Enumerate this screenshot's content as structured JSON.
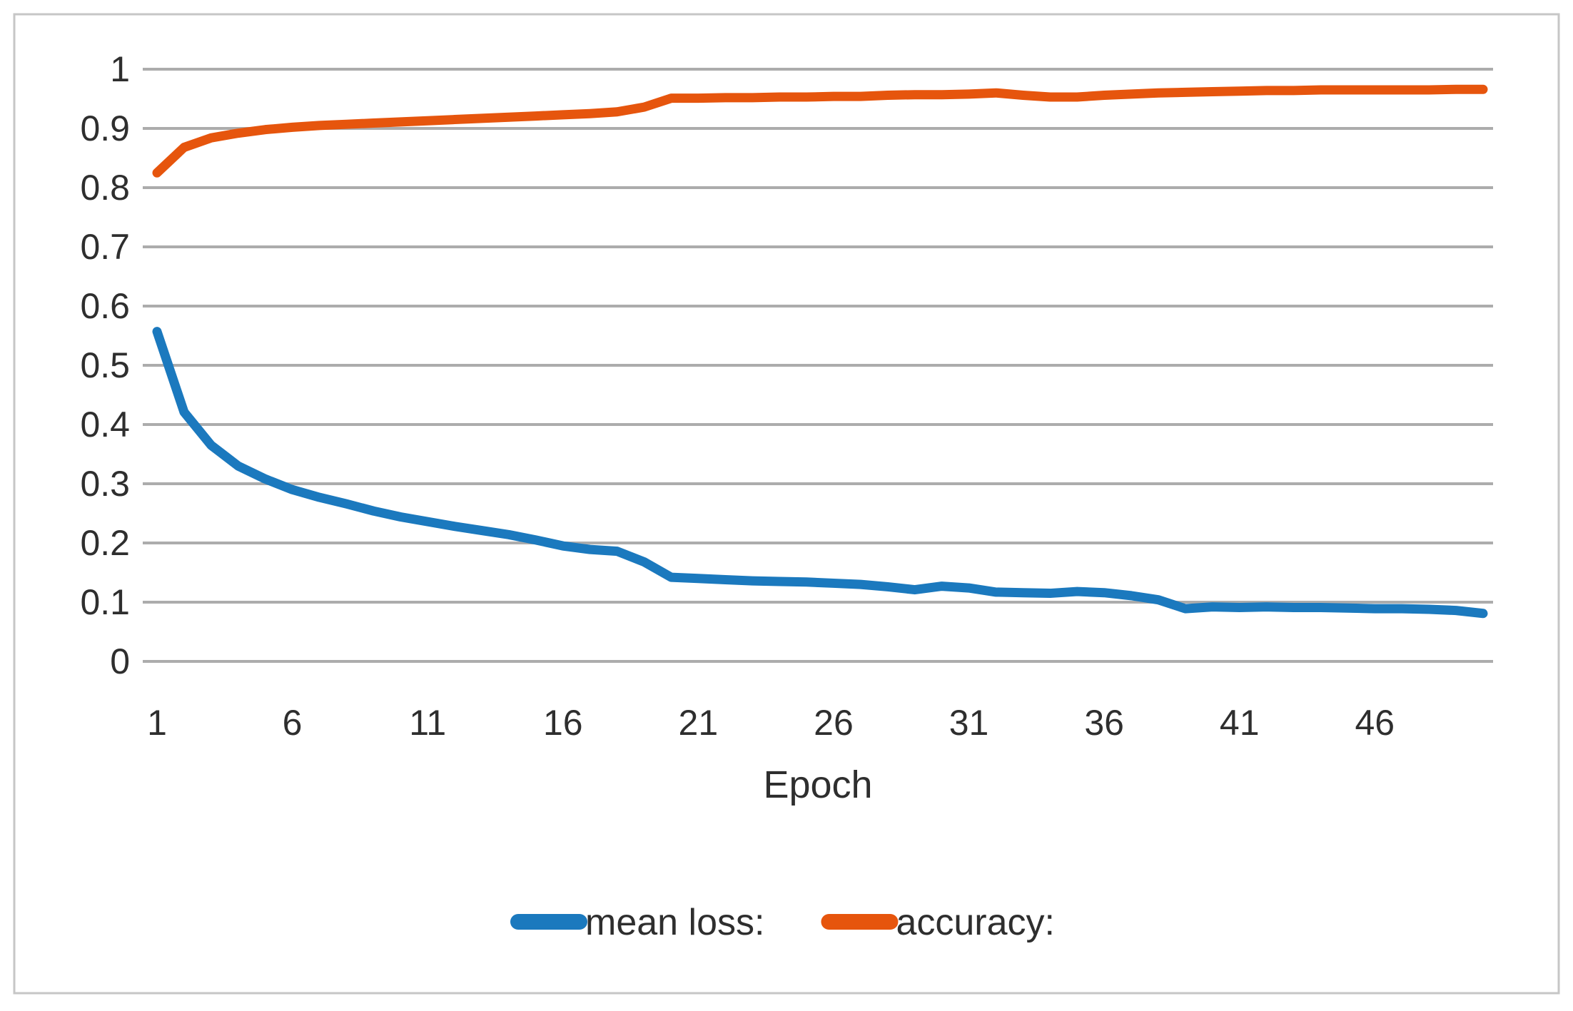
{
  "figure": {
    "background": "#ffffff",
    "border_color": "#c6c6c6",
    "gridline_color": "#acacac",
    "text_color": "#2e2e2e",
    "line_width": 13,
    "gridline_width": 4
  },
  "chart_data": {
    "type": "line",
    "title": "",
    "xlabel": "Epoch",
    "ylabel": "",
    "xlim": [
      1,
      50
    ],
    "ylim": [
      0,
      1
    ],
    "grid": true,
    "legend_position": "bottom",
    "xticks": [
      1,
      6,
      11,
      16,
      21,
      26,
      31,
      36,
      41,
      46
    ],
    "yticks": [
      0,
      0.1,
      0.2,
      0.3,
      0.4,
      0.5,
      0.6,
      0.7,
      0.8,
      0.9,
      1
    ],
    "x": [
      1,
      2,
      3,
      4,
      5,
      6,
      7,
      8,
      9,
      10,
      11,
      12,
      13,
      14,
      15,
      16,
      17,
      18,
      19,
      20,
      21,
      22,
      23,
      24,
      25,
      26,
      27,
      28,
      29,
      30,
      31,
      32,
      33,
      34,
      35,
      36,
      37,
      38,
      39,
      40,
      41,
      42,
      43,
      44,
      45,
      46,
      47,
      48,
      49,
      50
    ],
    "series": [
      {
        "name": "mean loss:",
        "color": "#1b79be",
        "values": [
          0.557,
          0.421,
          0.365,
          0.33,
          0.308,
          0.29,
          0.277,
          0.266,
          0.254,
          0.244,
          0.236,
          0.228,
          0.221,
          0.214,
          0.205,
          0.195,
          0.189,
          0.186,
          0.168,
          0.142,
          0.14,
          0.138,
          0.136,
          0.135,
          0.134,
          0.132,
          0.13,
          0.126,
          0.121,
          0.127,
          0.124,
          0.117,
          0.116,
          0.115,
          0.118,
          0.116,
          0.111,
          0.104,
          0.089,
          0.092,
          0.091,
          0.092,
          0.091,
          0.091,
          0.09,
          0.089,
          0.089,
          0.088,
          0.086,
          0.081
        ]
      },
      {
        "name": "accuracy:",
        "color": "#e6550d",
        "values": [
          0.825,
          0.868,
          0.884,
          0.892,
          0.898,
          0.902,
          0.905,
          0.907,
          0.909,
          0.911,
          0.913,
          0.915,
          0.917,
          0.919,
          0.921,
          0.923,
          0.925,
          0.928,
          0.936,
          0.951,
          0.951,
          0.952,
          0.952,
          0.953,
          0.953,
          0.954,
          0.954,
          0.956,
          0.957,
          0.957,
          0.958,
          0.96,
          0.956,
          0.953,
          0.953,
          0.956,
          0.958,
          0.96,
          0.961,
          0.962,
          0.963,
          0.964,
          0.964,
          0.965,
          0.965,
          0.965,
          0.965,
          0.965,
          0.966,
          0.966
        ]
      }
    ]
  }
}
